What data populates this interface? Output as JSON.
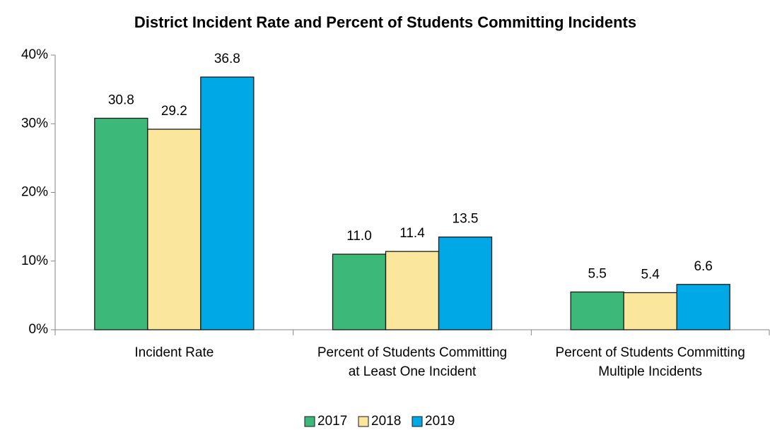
{
  "chart_data": {
    "type": "bar",
    "title": "District Incident Rate and Percent of Students Committing Incidents",
    "categories": [
      "Incident Rate",
      "Percent of Students Committing at Least One Incident",
      "Percent of Students Committing Multiple Incidents"
    ],
    "series": [
      {
        "name": "2017",
        "color": "#3cb878",
        "values": [
          30.8,
          11.0,
          5.5
        ],
        "value_labels": [
          "30.8",
          "11.0",
          "5.5"
        ]
      },
      {
        "name": "2018",
        "color": "#fbe79b",
        "values": [
          29.2,
          11.4,
          5.4
        ],
        "value_labels": [
          "29.2",
          "11.4",
          "5.4"
        ]
      },
      {
        "name": "2019",
        "color": "#00a9e6",
        "values": [
          36.8,
          13.5,
          6.6
        ],
        "value_labels": [
          "36.8",
          "13.5",
          "6.6"
        ]
      }
    ],
    "ylim": [
      0,
      40
    ],
    "yticks": [
      {
        "value": 0,
        "label": "0%"
      },
      {
        "value": 10,
        "label": "10%"
      },
      {
        "value": 20,
        "label": "20%"
      },
      {
        "value": 30,
        "label": "30%"
      },
      {
        "value": 40,
        "label": "40%"
      }
    ],
    "grid": false,
    "legend": "bottom"
  }
}
